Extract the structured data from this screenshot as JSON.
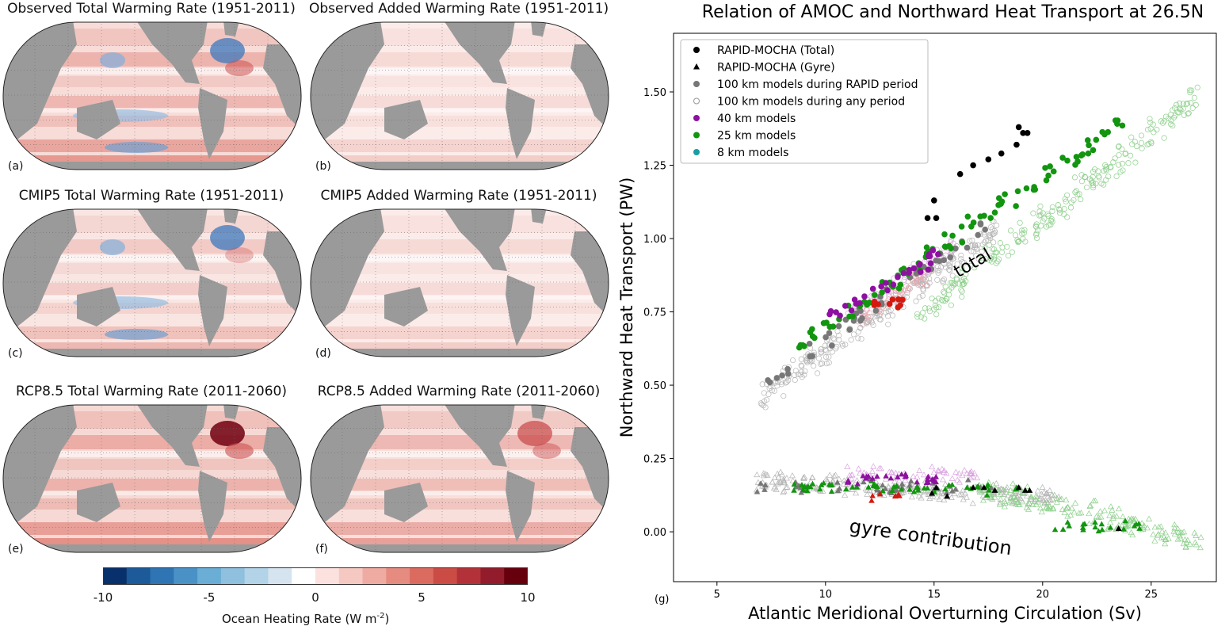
{
  "maps": [
    {
      "title": "Observed Total Warming Rate (1951-2011)",
      "letter": "(a)",
      "intensity": 0.9,
      "cool": true,
      "natl": true
    },
    {
      "title": "Observed Added Warming Rate (1951-2011)",
      "letter": "(b)",
      "intensity": 0.35,
      "cool": false,
      "natl": false
    },
    {
      "title": "CMIP5 Total Warming Rate (1951-2011)",
      "letter": "(c)",
      "intensity": 0.55,
      "cool": true,
      "natl": true
    },
    {
      "title": "CMIP5 Added Warming Rate (1951-2011)",
      "letter": "(d)",
      "intensity": 0.35,
      "cool": false,
      "natl": false
    },
    {
      "title": "RCP8.5 Total Warming Rate (2011-2060)",
      "letter": "(e)",
      "intensity": 1.0,
      "cool": false,
      "natl": true
    },
    {
      "title": "RCP8.5 Added Warming Rate (2011-2060)",
      "letter": "(f)",
      "intensity": 0.8,
      "cool": false,
      "natl": true
    }
  ],
  "colorbar": {
    "label": "Ocean Heating Rate (W m",
    "label_sup": "-2",
    "label_end": ")",
    "ticks": [
      "-10",
      "-5",
      "0",
      "5",
      "10"
    ],
    "range": [
      -10,
      10
    ],
    "colors": [
      "#08306b",
      "#1c5a99",
      "#2f74b3",
      "#4a92c6",
      "#6aaed6",
      "#8fc0de",
      "#b3d3e8",
      "#d5e4ef",
      "#ffffff",
      "#fbe2df",
      "#f6c8c2",
      "#efaba2",
      "#e68b80",
      "#dc6b5f",
      "#cb4c44",
      "#b3323a",
      "#931c2c",
      "#67000d"
    ]
  },
  "chart_data": {
    "type": "scatter",
    "title": "Relation of AMOC and Northward Heat Transport at 26.5N",
    "xlabel": "Atlantic Meridional Overturning Circulation (Sv)",
    "ylabel": "Northward Heat Transport (PW)",
    "panel_letter": "(g)",
    "xlim": [
      3,
      28
    ],
    "ylim": [
      -0.17,
      1.7
    ],
    "xticks": [
      5,
      10,
      15,
      20,
      25
    ],
    "yticks": [
      0.0,
      0.25,
      0.5,
      0.75,
      1.0,
      1.25,
      1.5
    ],
    "ytick_labels": [
      "0.00",
      "0.25",
      "0.50",
      "0.75",
      "1.00",
      "1.25",
      "1.50"
    ],
    "legend_position": "upper-left",
    "annotations": [
      {
        "text": "total",
        "x": 16.9,
        "y": 0.9
      },
      {
        "text": "gyre contribution",
        "x": 14.8,
        "y": -0.04
      }
    ],
    "legend": [
      {
        "name": "RAPID-MOCHA (Total)",
        "marker": "circle",
        "color": "#000000",
        "filled": true
      },
      {
        "name": "RAPID-MOCHA (Gyre)",
        "marker": "triangle",
        "color": "#000000",
        "filled": true
      },
      {
        "name": "100 km models during RAPID period",
        "marker": "circle",
        "color": "#777777",
        "filled": true
      },
      {
        "name": "100 km models during any period",
        "marker": "circle",
        "color": "#999999",
        "filled": false
      },
      {
        "name": "40 km models",
        "marker": "circle",
        "color": "#8e10a0",
        "filled": true
      },
      {
        "name": "25 km models",
        "marker": "circle",
        "color": "#12950f",
        "filled": true
      },
      {
        "name": "8 km models",
        "marker": "circle",
        "color": "#1a9ca3",
        "filled": true
      }
    ],
    "series": [
      {
        "name": "RAPID-MOCHA (Total)",
        "marker": "circle",
        "color": "#000000",
        "filled": true,
        "points": [
          [
            14.7,
            1.07
          ],
          [
            15.1,
            1.07
          ],
          [
            15.0,
            1.13
          ],
          [
            16.2,
            1.22
          ],
          [
            16.8,
            1.25
          ],
          [
            17.5,
            1.27
          ],
          [
            18.1,
            1.29
          ],
          [
            18.9,
            1.38
          ],
          [
            19.1,
            1.36
          ],
          [
            19.3,
            1.36
          ],
          [
            18.8,
            1.32
          ]
        ]
      },
      {
        "name": "RAPID-MOCHA (Gyre)",
        "marker": "triangle",
        "color": "#000000",
        "filled": true,
        "points": [
          [
            14.9,
            0.13
          ],
          [
            15.1,
            0.15
          ],
          [
            16.8,
            0.15
          ],
          [
            17.3,
            0.15
          ],
          [
            17.8,
            0.14
          ],
          [
            18.9,
            0.15
          ],
          [
            19.2,
            0.14
          ],
          [
            19.4,
            0.14
          ],
          [
            15.6,
            0.12
          ],
          [
            23.5,
            0.01
          ]
        ]
      }
    ]
  }
}
